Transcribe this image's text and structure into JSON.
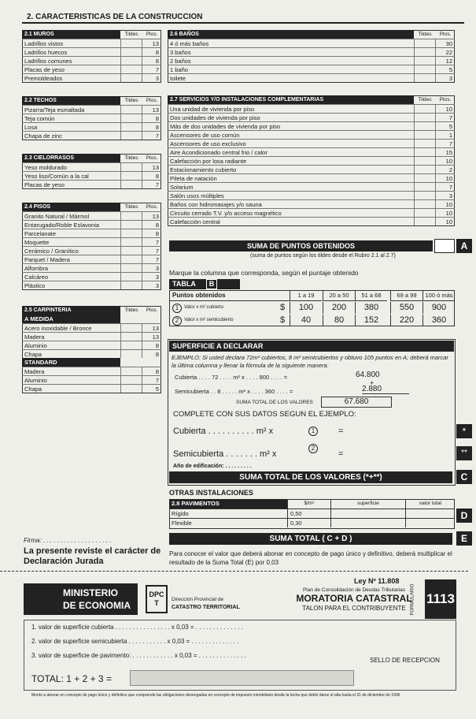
{
  "header": {
    "title": "2. CARACTERISTICAS DE LA CONSTRUCCION"
  },
  "sections": [
    {
      "title": "2.1 MUROS",
      "cols": [
        "Tildes",
        "Ptos."
      ],
      "rows": [
        [
          "Ladrillos vistos",
          "13"
        ],
        [
          "Ladrillos huecos",
          "8"
        ],
        [
          "Ladrillos comunes",
          "8"
        ],
        [
          "Placas de yeso",
          "7"
        ],
        [
          "Premoldeados",
          "3"
        ]
      ]
    },
    {
      "title": "2.2 TECHOS",
      "cols": [
        "Tildes",
        "Ptos."
      ],
      "rows": [
        [
          "Pizarra/Teja esmaltada",
          "13"
        ],
        [
          "Teja común",
          "8"
        ],
        [
          "Losa",
          "8"
        ],
        [
          "Chapa de zinc",
          "7"
        ]
      ]
    },
    {
      "title": "2.3 CIELORRASOS",
      "cols": [
        "Tildes",
        "Ptos."
      ],
      "rows": [
        [
          "Yeso moldurado",
          "13"
        ],
        [
          "Yeso liso/Común a la cal",
          "8"
        ],
        [
          "Placas de yeso",
          "7"
        ]
      ]
    },
    {
      "title": "2.4 PISOS",
      "cols": [
        "Tildes",
        "Ptos."
      ],
      "rows": [
        [
          "Granito Natural / Mármol",
          "13"
        ],
        [
          "Entarugado/Roble Eslavonia",
          "8"
        ],
        [
          "Parcelanate",
          "8"
        ],
        [
          "Moquette",
          "7"
        ],
        [
          "Cerámico / Granítico",
          "7"
        ],
        [
          "Parquet / Madera",
          "7"
        ],
        [
          "Alfombra",
          "3"
        ],
        [
          "Calcáreo",
          "3"
        ],
        [
          "Plástico",
          "3"
        ]
      ]
    },
    {
      "title": "2.5 CARPINTERIA",
      "cols": [
        "Tildes",
        "Ptos."
      ],
      "rows": [
        [
          "A MEDIDA"
        ],
        [
          "Acero inoxidable / Bronce",
          "13"
        ],
        [
          "Madera",
          "13"
        ],
        [
          "Aluminio",
          "8"
        ],
        [
          "Chapa",
          "8"
        ],
        [
          "STANDARD"
        ],
        [
          "Madera",
          "8"
        ],
        [
          "Aluminio",
          "7"
        ],
        [
          "Chapa",
          "5"
        ]
      ]
    },
    {
      "title": "2.6 BAÑOS",
      "cols": [
        "Tildes",
        "Ptos."
      ],
      "rows": [
        [
          "4 ó más baños",
          "30"
        ],
        [
          "3 baños",
          "22"
        ],
        [
          "2 baños",
          "12"
        ],
        [
          "1 baño",
          "5"
        ],
        [
          "toilete",
          "3"
        ]
      ]
    },
    {
      "title": "2.7 SERVICIOS Y/O INSTALACIONES COMPLEMENTARIAS",
      "cols": [
        "Tildes",
        "Ptos."
      ],
      "rows": [
        [
          "Una unidad de vivienda por piso",
          "10"
        ],
        [
          "Dos unidades de vivienda por piso",
          "7"
        ],
        [
          "Más de dos unidades de vivienda por piso",
          "5"
        ],
        [
          "Ascensores de uso común",
          "1"
        ],
        [
          "Ascensores de uso exclusivo",
          "7"
        ],
        [
          "Aire Acondicionado central frio / calor",
          "15"
        ],
        [
          "Calefacción por losa radiante",
          "10"
        ],
        [
          "Estacionamiento cubierto",
          "2"
        ],
        [
          "Pileta de natación",
          "10"
        ],
        [
          "Solarium",
          "7"
        ],
        [
          "Salón usos múltiples",
          "3"
        ],
        [
          "Baños con hidromasajes y/o sauna",
          "10"
        ],
        [
          "Circuito cerrado T.V. y/o acceso magnético",
          "10"
        ],
        [
          "Calefacción central",
          "10"
        ]
      ]
    }
  ],
  "suma_a": {
    "title": "SUMA DE PUNTOS OBTENIDOS",
    "letter": "A",
    "note": "(suma de puntos según los tildes desde el Rubro 2.1 al 2.7)",
    "instruction": "Marque la columna que corresponda, según el puntaje obtenido"
  },
  "tabla": {
    "title": "TABLA",
    "letter": "B",
    "header": [
      "Puntos obtenidos",
      "1 a 19",
      "20 a 50",
      "51 a 68",
      "69 a 99",
      "100 ó más"
    ],
    "rows": [
      {
        "num": "1",
        "label": "Valor x m² cubierto",
        "cur": "$",
        "values": [
          "100",
          "200",
          "380",
          "550",
          "900"
        ]
      },
      {
        "num": "2",
        "label": "Valor x m² semicubierto",
        "cur": "$",
        "values": [
          "40",
          "80",
          "152",
          "220",
          "360"
        ]
      }
    ]
  },
  "superficie": {
    "title": "SUPERFICIE A DECLARAR",
    "example": "EJEMPLO: Si usted declara 72m² cubiertos, 8 m² semicubiertos y obtuvo 105 puntos en A; deberá marcar la última columna y llenar la fórmula de la siguiente manera:",
    "ex_cub": "Cubierta . . . . 72 . . . . m² x . . . . 900 . . . . =",
    "ex_cub_total": "64.800",
    "plus": "+",
    "ex_semi": "Semicubierta . . 8 . . . . . m² x . . . . 360 . . . . =",
    "ex_semi_total": "2.880",
    "ex_sum": "SUMA TOTAL DE LOS VALORES",
    "ex_sum_total": "67.680",
    "complete": "COMPLETE CON SUS DATOS SEGUN EL EJEMPLO:",
    "cub": "Cubierta . . . . . . . . . . m² x",
    "cub_ref": "1",
    "semi": "Semicubierta . . . . . . . m² x",
    "semi_ref": "2",
    "eq": "=",
    "star1": "*",
    "star2": "**",
    "anio": "Año de edificación: . . . . . . . . .",
    "sum": "SUMA TOTAL DE LOS VALORES (*+**)",
    "letter": "C"
  },
  "otras": {
    "title": "OTRAS INSTALACIONES",
    "table_title": "2.8 PAVIMENTOS",
    "cols": [
      "$/m²",
      "superficie",
      "valor total"
    ],
    "rows": [
      [
        "Rígido",
        "0,50"
      ],
      [
        "Flexible",
        "0,30"
      ]
    ],
    "letter": "D"
  },
  "firma": {
    "label": "Firma: . . . . . . . . . . . . . . . . . . . .",
    "note": "La presente reviste el carácter de Declaración Jurada"
  },
  "suma_e": {
    "title": "SUMA TOTAL ( C + D )",
    "letter": "E",
    "note": "Para conocer el valor que deberá abonar en concepto de pago único y definitivo, deberá multiplicar el resultado de la Suma Total (E) por 0,03"
  },
  "talon": {
    "ministerio": "MINISTERIO DE ECONOMIA",
    "logo": "DPCT",
    "dir1": "Dirección Provincial de",
    "dir2": "CATASTRO TERRITORIAL",
    "ley": "Ley Nº 11.808",
    "plan": "Plan de Consolidación de Deudas Tributarias",
    "moratoria": "MORATORIA CATASTRAL",
    "talon": "TALON PARA EL CONTRIBUYENTE",
    "formulario": "FORMULARIO",
    "number": "1113",
    "lines": [
      "1. valor de superficie cubierta . . . . . . . . . . . . . . . . x 0,03 = . . . . . . . . . . . . . .",
      "2. valor de superficie semicubierta . . . . . . . . . . . x 0,03 = . . . . . . . . . . . . . .",
      "3. valor de superficie de pavimento: . . . . . . . . . . . . x 0,03 = . . . . . . . . . . . . . ."
    ],
    "sello": "SELLO DE RECEPCION",
    "total": "TOTAL: 1 + 2 + 3 =",
    "footnote": "Monto a abonar en concepto de pago único y definitivo que comprende las obligaciones devengadas en concepto de impuesto inmobiliario desde la fecha que debió darse el alta hasta el 31 de diciembre de 1996"
  }
}
